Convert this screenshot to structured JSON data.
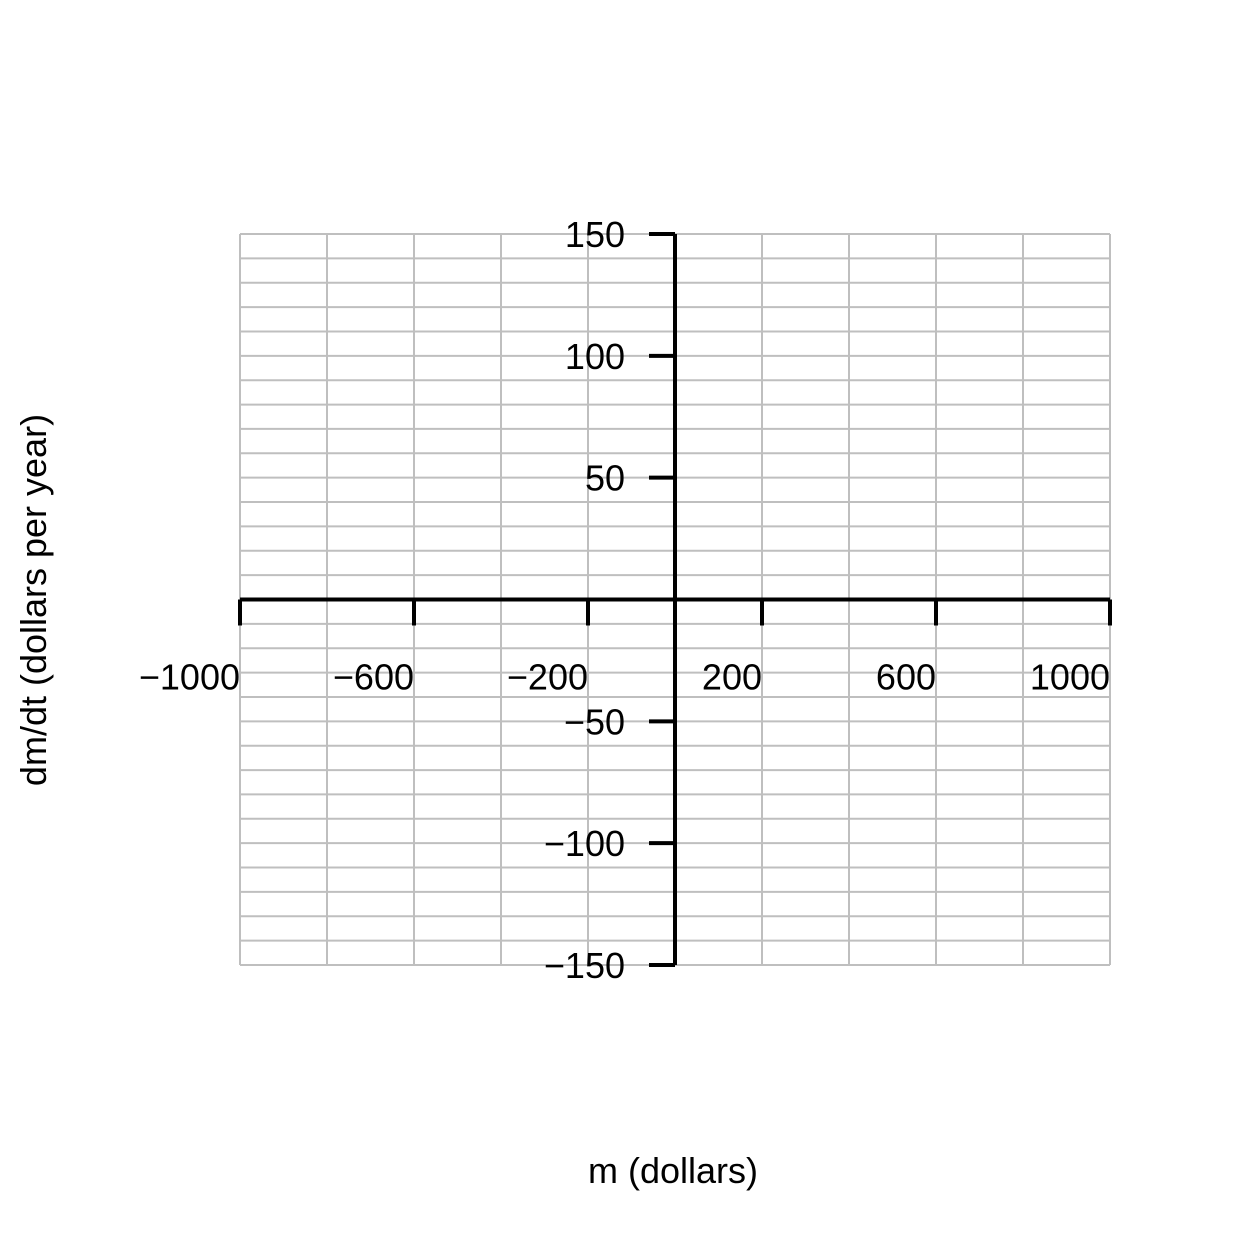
{
  "chart_data": {
    "type": "line",
    "title": "",
    "xlabel": "m (dollars)",
    "ylabel": "dm/dt (dollars per year)",
    "xlim": [
      -1000,
      1000
    ],
    "ylim": [
      -150,
      150
    ],
    "x_ticks": [
      -1000,
      -600,
      -200,
      200,
      600,
      1000
    ],
    "x_tick_labels": [
      "−1000",
      "−600",
      "−200",
      "200",
      "600",
      "1000"
    ],
    "x_tick_marks": [
      -1000,
      -600,
      -200,
      200,
      600,
      1000
    ],
    "y_ticks": [
      150,
      100,
      50,
      -50,
      -100,
      -150
    ],
    "y_tick_labels": [
      "150",
      "100",
      "50",
      "−50",
      "−100",
      "−150"
    ],
    "x_grid_step": 200,
    "y_grid_step": 10,
    "grid": true,
    "series": [],
    "colors": {
      "axis": "#000000",
      "grid": "#bfbfbf"
    }
  }
}
